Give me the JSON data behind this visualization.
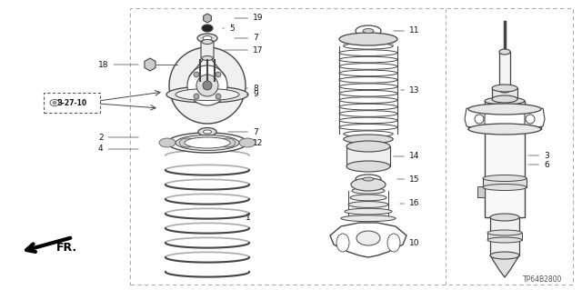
{
  "bg_color": "#ffffff",
  "line_color": "#444444",
  "text_color": "#111111",
  "part_num": "TP64B2800",
  "figsize": [
    6.4,
    3.19
  ],
  "dpi": 100
}
